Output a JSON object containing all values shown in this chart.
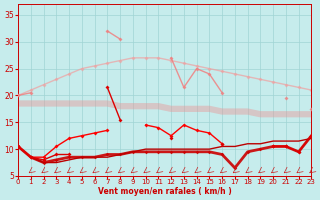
{
  "x": [
    0,
    1,
    2,
    3,
    4,
    5,
    6,
    7,
    8,
    9,
    10,
    11,
    12,
    13,
    14,
    15,
    16,
    17,
    18,
    19,
    20,
    21,
    22,
    23
  ],
  "series": {
    "light_pink_rising": [
      20.0,
      21.0,
      22.0,
      23.0,
      24.0,
      25.0,
      25.5,
      26.0,
      26.5,
      27.0,
      27.0,
      27.0,
      26.5,
      26.0,
      25.5,
      25.0,
      24.5,
      24.0,
      23.5,
      23.0,
      22.5,
      22.0,
      21.5,
      21.0
    ],
    "pink_flat_wide": [
      18.5,
      18.5,
      18.5,
      18.5,
      18.5,
      18.5,
      18.5,
      18.5,
      18.0,
      18.0,
      18.0,
      18.0,
      17.5,
      17.5,
      17.5,
      17.5,
      17.0,
      17.0,
      17.0,
      16.5,
      16.5,
      16.5,
      16.5,
      16.5
    ],
    "light_pink_spiky": [
      20.0,
      20.5,
      null,
      null,
      null,
      null,
      null,
      32.0,
      30.5,
      null,
      null,
      null,
      27.0,
      21.5,
      25.0,
      24.0,
      20.5,
      null,
      null,
      null,
      null,
      19.5,
      null,
      17.5
    ],
    "red_main": [
      10.5,
      8.5,
      8.5,
      10.5,
      12.0,
      12.5,
      13.0,
      13.5,
      null,
      null,
      14.5,
      14.0,
      12.5,
      14.5,
      13.5,
      13.0,
      11.0,
      null,
      null,
      null,
      10.5,
      10.5,
      null,
      12.5
    ],
    "red_spiky": [
      10.5,
      8.5,
      8.0,
      9.0,
      9.0,
      null,
      null,
      21.5,
      15.5,
      null,
      null,
      null,
      12.0,
      null,
      null,
      null,
      11.0,
      null,
      null,
      null,
      10.5,
      10.5,
      9.5,
      12.5
    ],
    "red_thick_low": [
      10.5,
      8.5,
      7.5,
      8.0,
      8.5,
      8.5,
      8.5,
      9.0,
      9.0,
      9.5,
      9.5,
      9.5,
      9.5,
      9.5,
      9.5,
      9.5,
      9.0,
      6.5,
      9.5,
      10.0,
      10.5,
      10.5,
      9.5,
      12.5
    ],
    "red_rising_line": [
      10.5,
      8.5,
      7.5,
      7.5,
      8.0,
      8.5,
      8.5,
      8.5,
      9.0,
      9.5,
      10.0,
      10.0,
      10.0,
      10.0,
      10.0,
      10.0,
      10.5,
      10.5,
      11.0,
      11.0,
      11.5,
      11.5,
      11.5,
      12.0
    ]
  },
  "arrows": {
    "x": [
      0,
      1,
      2,
      3,
      4,
      5,
      6,
      7,
      8,
      9,
      10,
      11,
      12,
      13,
      14,
      15,
      16,
      17,
      18,
      19,
      20,
      21,
      22,
      23
    ],
    "y": 5.5
  },
  "xlabel": "Vent moyen/en rafales ( km/h )",
  "xlim": [
    0,
    23
  ],
  "ylim": [
    5,
    37
  ],
  "yticks": [
    5,
    10,
    15,
    20,
    25,
    30,
    35
  ],
  "xticks": [
    0,
    1,
    2,
    3,
    4,
    5,
    6,
    7,
    8,
    9,
    10,
    11,
    12,
    13,
    14,
    15,
    16,
    17,
    18,
    19,
    20,
    21,
    22,
    23
  ],
  "bg_color": "#c6ecec",
  "grid_color": "#a0d4d4",
  "colors": {
    "light_pink_rising": "#f0a0a0",
    "pink_flat_wide": "#e89898",
    "light_pink_spiky": "#f08080",
    "red_main": "#ff0000",
    "red_spiky": "#dd0000",
    "red_thick_low": "#cc0000",
    "red_rising_line": "#bb0000"
  }
}
